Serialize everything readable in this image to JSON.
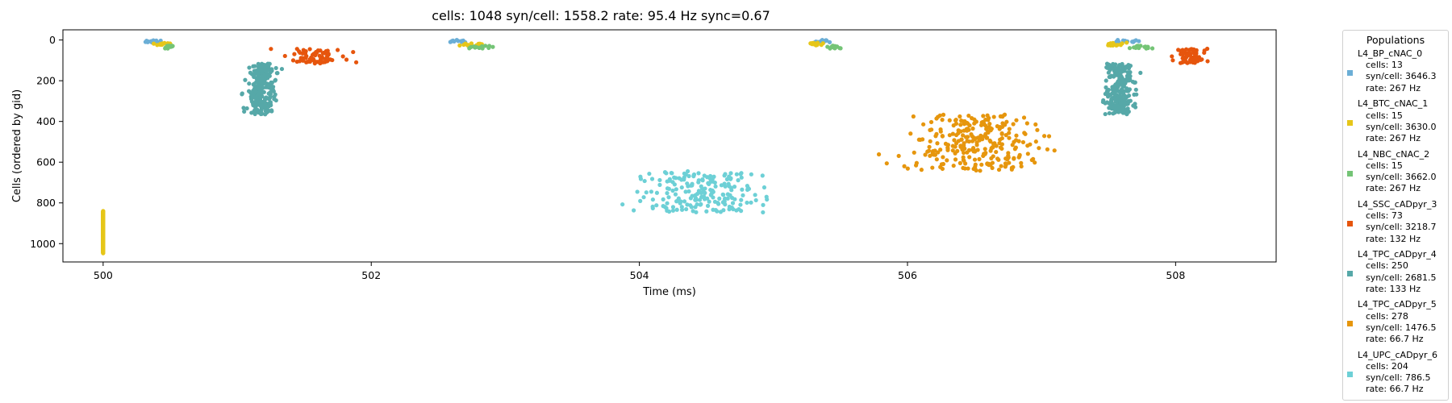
{
  "chart_data": {
    "type": "scatter",
    "title": "cells: 1048   syn/cell: 1558.2   rate: 95.4 Hz    sync=0.67",
    "xlabel": "Time (ms)",
    "ylabel": "Cells (ordered by gid)",
    "xlim": [
      499.7,
      508.75
    ],
    "ylim": [
      1090,
      -50
    ],
    "xticks": [
      "500",
      "502",
      "504",
      "506",
      "508"
    ],
    "yticks": [
      "0",
      "200",
      "400",
      "600",
      "800",
      "1000"
    ],
    "grid": false,
    "legend_title": "Populations",
    "legend_placement": "outside-right",
    "series": [
      {
        "name": "L4_BP_cNAC_0",
        "color": "#6baed6",
        "stats": [
          "cells: 13",
          "syn/cell: 3646.3",
          "rate: 267 Hz"
        ],
        "gid_range": [
          0,
          12
        ],
        "bursts": [
          {
            "t": 500.38,
            "tsd": 0.04,
            "n": 13
          },
          {
            "t": 502.65,
            "tsd": 0.04,
            "n": 13
          },
          {
            "t": 505.38,
            "tsd": 0.04,
            "n": 13
          },
          {
            "t": 507.65,
            "tsd": 0.05,
            "n": 13
          }
        ]
      },
      {
        "name": "L4_BTC_cNAC_1",
        "color": "#e6c619",
        "stats": [
          "cells: 15",
          "syn/cell: 3630.0",
          "rate: 267 Hz"
        ],
        "gid_range": [
          13,
          27
        ],
        "bursts": [
          {
            "t": 500.0,
            "tsd": 0.0,
            "n": 15,
            "vertical": true,
            "gid_range": [
              840,
              1048
            ]
          },
          {
            "t": 500.45,
            "tsd": 0.03,
            "n": 15
          },
          {
            "t": 502.75,
            "tsd": 0.04,
            "n": 15
          },
          {
            "t": 505.32,
            "tsd": 0.03,
            "n": 15
          },
          {
            "t": 507.55,
            "tsd": 0.04,
            "n": 15
          }
        ]
      },
      {
        "name": "L4_NBC_cNAC_2",
        "color": "#74c476",
        "stats": [
          "cells: 15",
          "syn/cell: 3662.0",
          "rate: 267 Hz"
        ],
        "gid_range": [
          28,
          42
        ],
        "bursts": [
          {
            "t": 500.48,
            "tsd": 0.02,
            "n": 15
          },
          {
            "t": 502.82,
            "tsd": 0.04,
            "n": 15
          },
          {
            "t": 505.45,
            "tsd": 0.03,
            "n": 15
          },
          {
            "t": 507.75,
            "tsd": 0.04,
            "n": 15
          }
        ]
      },
      {
        "name": "L4_SSC_cADpyr_3",
        "color": "#e6550d",
        "stats": [
          "cells: 73",
          "syn/cell: 3218.7",
          "rate: 132 Hz"
        ],
        "gid_range": [
          43,
          115
        ],
        "bursts": [
          {
            "t": 501.6,
            "tsd": 0.1,
            "n": 73
          },
          {
            "t": 508.1,
            "tsd": 0.05,
            "n": 73
          }
        ]
      },
      {
        "name": "L4_TPC_cADpyr_4",
        "color": "#56a8a8",
        "stats": [
          "cells: 250",
          "syn/cell: 2681.5",
          "rate: 133 Hz"
        ],
        "gid_range": [
          116,
          365
        ],
        "bursts": [
          {
            "t": 501.18,
            "tsd": 0.05,
            "n": 250
          },
          {
            "t": 507.58,
            "tsd": 0.05,
            "n": 250
          }
        ]
      },
      {
        "name": "L4_TPC_cADpyr_5",
        "color": "#e6960d",
        "stats": [
          "cells: 278",
          "syn/cell: 1476.5",
          "rate: 66.7 Hz"
        ],
        "gid_range": [
          366,
          643
        ],
        "bursts": [
          {
            "t": 506.5,
            "tsd": 0.25,
            "n": 278
          }
        ]
      },
      {
        "name": "L4_UPC_cADpyr_6",
        "color": "#6dd0d6",
        "stats": [
          "cells: 204",
          "syn/cell: 786.5",
          "rate: 66.7 Hz"
        ],
        "gid_range": [
          644,
          847
        ],
        "bursts": [
          {
            "t": 504.45,
            "tsd": 0.22,
            "n": 204
          }
        ]
      }
    ]
  }
}
